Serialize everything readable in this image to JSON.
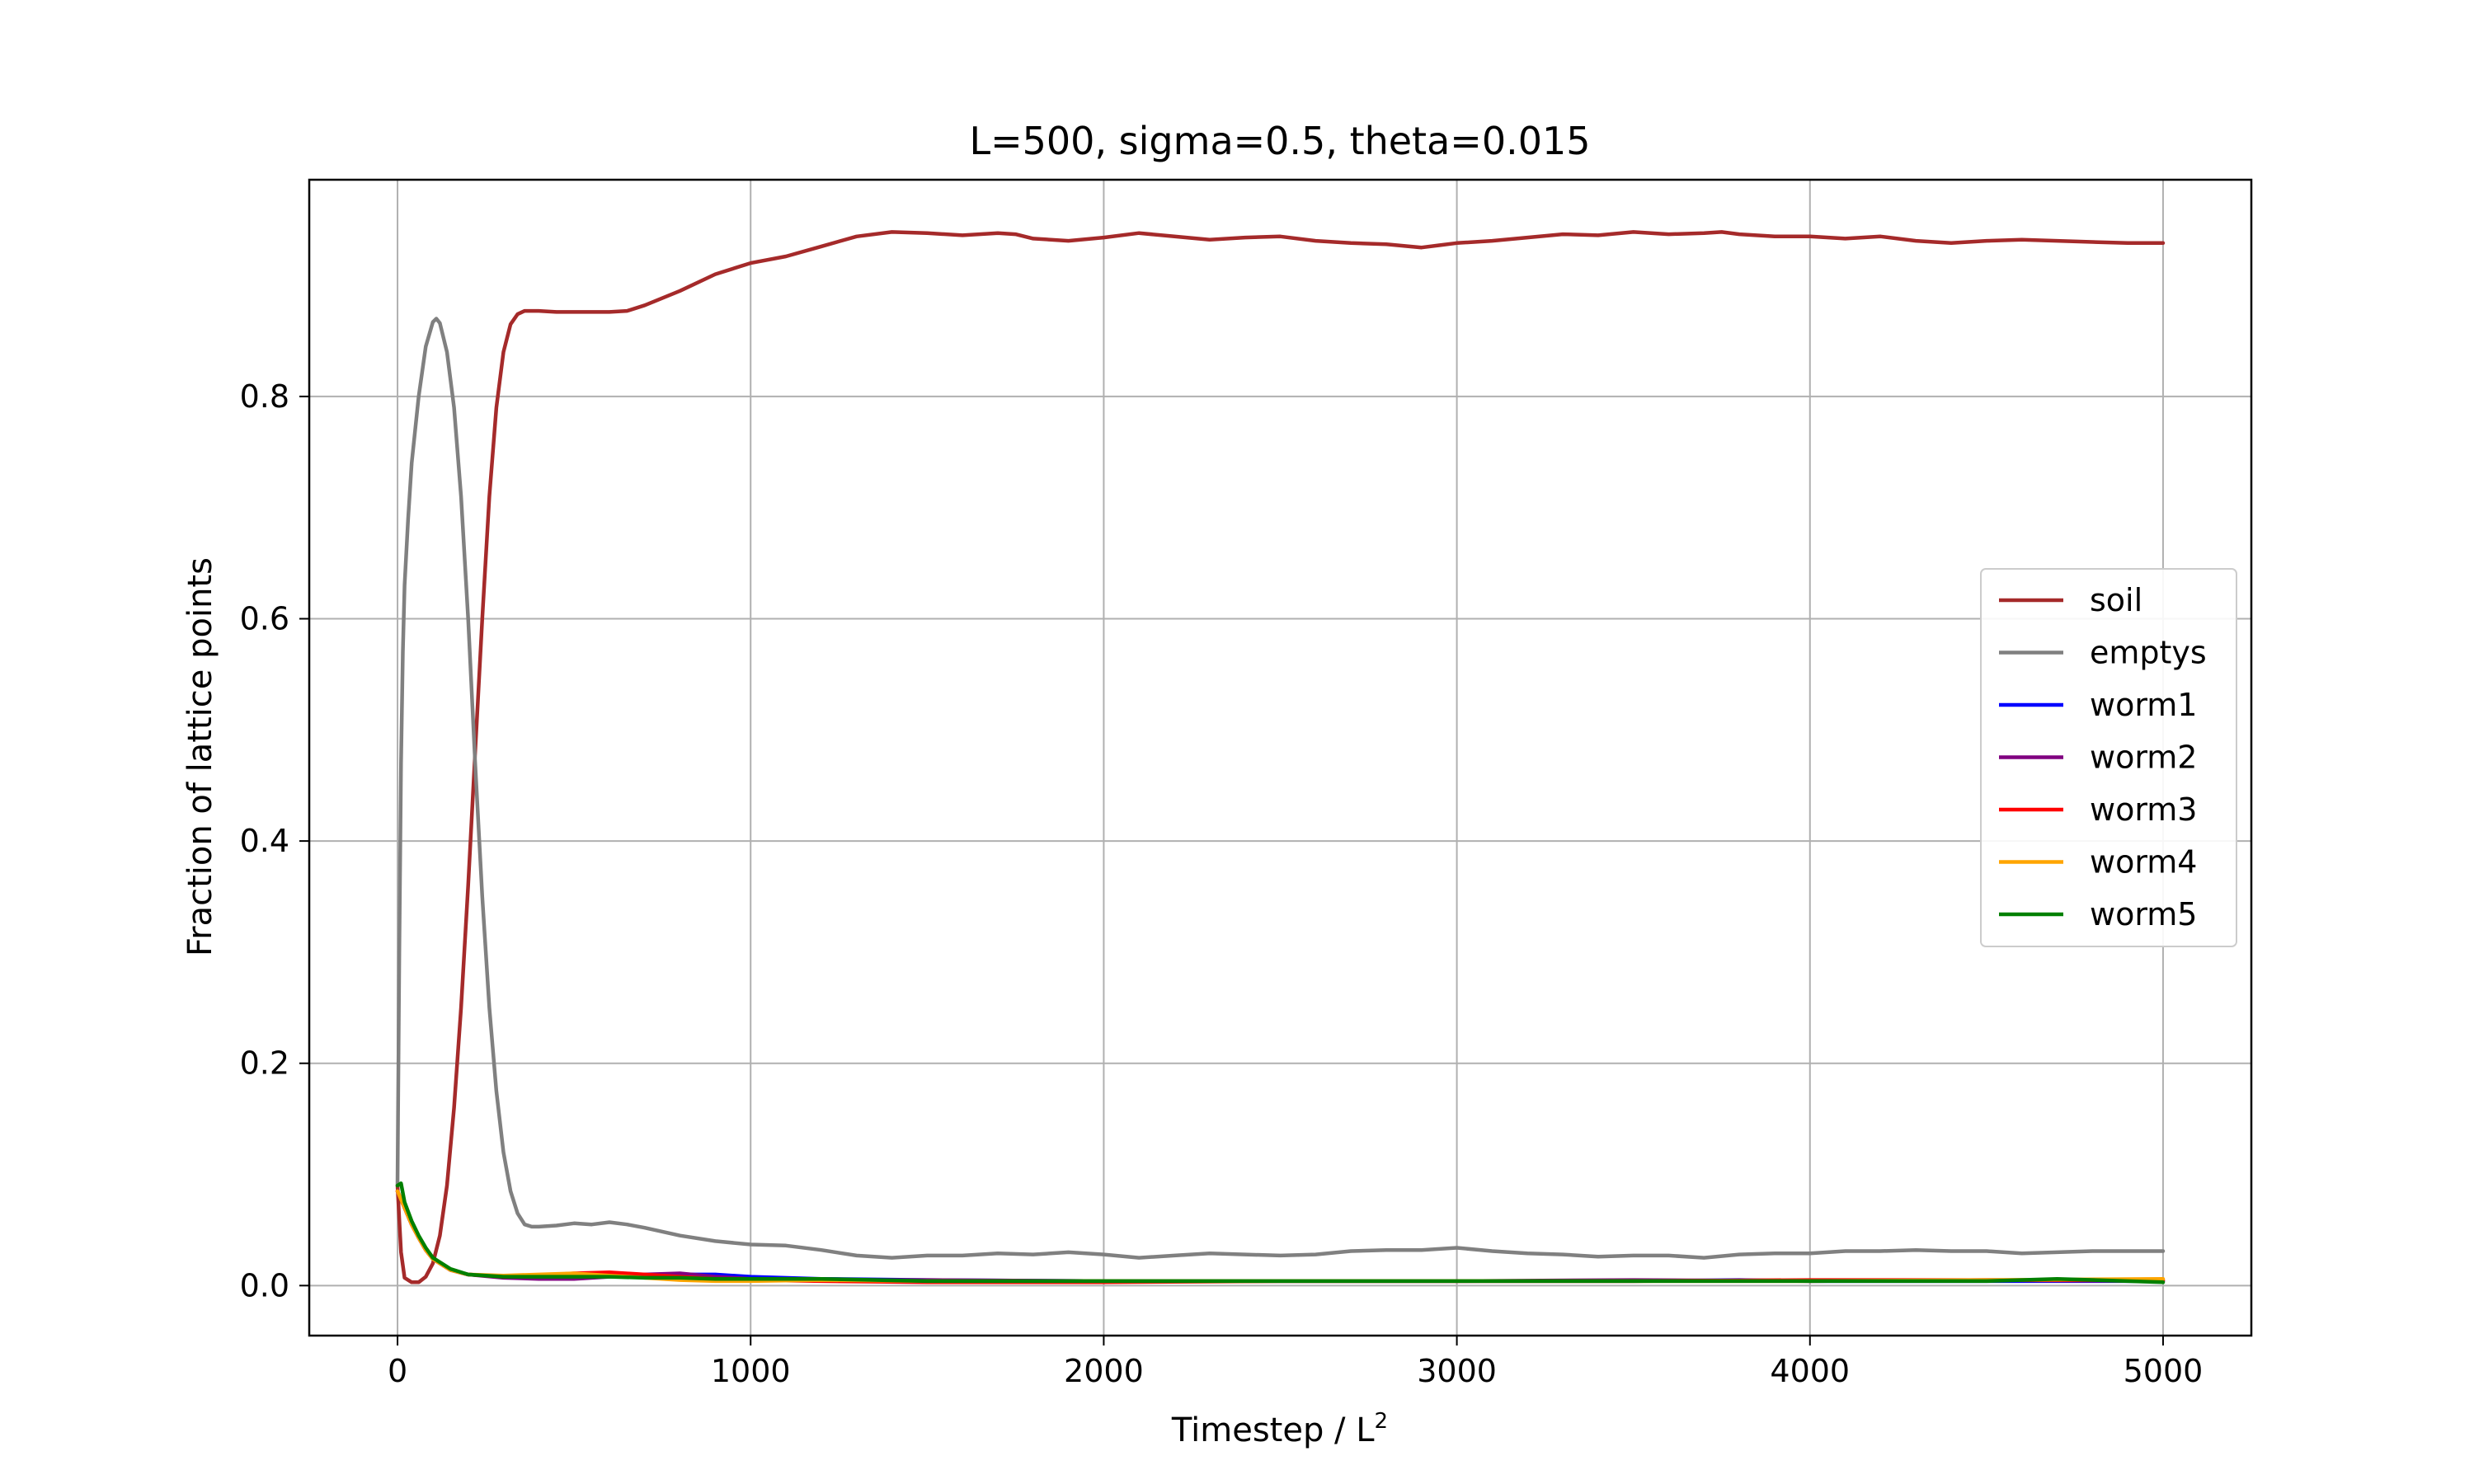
{
  "chart_data": {
    "type": "line",
    "title": "L=500, sigma=0.5, theta=0.015",
    "xlabel": "Timestep / L",
    "xlabel_sup": "2",
    "ylabel": "Fraction of lattice points",
    "xlim": [
      -250,
      5250
    ],
    "ylim": [
      -0.045,
      0.995
    ],
    "xticks": [
      0,
      1000,
      2000,
      3000,
      4000,
      5000
    ],
    "xtick_labels": [
      "0",
      "1000",
      "2000",
      "3000",
      "4000",
      "5000"
    ],
    "yticks": [
      0.0,
      0.2,
      0.4,
      0.6,
      0.8
    ],
    "ytick_labels": [
      "0.0",
      "0.2",
      "0.4",
      "0.6",
      "0.8"
    ],
    "grid": true,
    "legend_position": "center-right",
    "series": [
      {
        "name": "soil",
        "color": "#a52a2a",
        "x": [
          0,
          10,
          20,
          40,
          60,
          80,
          100,
          120,
          140,
          160,
          180,
          200,
          220,
          240,
          260,
          280,
          300,
          320,
          340,
          360,
          400,
          450,
          500,
          550,
          600,
          650,
          700,
          800,
          900,
          1000,
          1100,
          1200,
          1300,
          1400,
          1500,
          1600,
          1700,
          1750,
          1800,
          1900,
          2000,
          2100,
          2200,
          2300,
          2400,
          2500,
          2600,
          2700,
          2800,
          2900,
          2950,
          3000,
          3100,
          3200,
          3300,
          3400,
          3500,
          3600,
          3700,
          3750,
          3800,
          3900,
          4000,
          4100,
          4200,
          4300,
          4400,
          4500,
          4600,
          4700,
          4800,
          4900,
          5000
        ],
        "y": [
          0.09,
          0.03,
          0.007,
          0.003,
          0.003,
          0.008,
          0.02,
          0.045,
          0.09,
          0.16,
          0.25,
          0.36,
          0.48,
          0.6,
          0.71,
          0.79,
          0.84,
          0.865,
          0.874,
          0.877,
          0.877,
          0.876,
          0.876,
          0.876,
          0.876,
          0.877,
          0.882,
          0.895,
          0.91,
          0.92,
          0.926,
          0.935,
          0.944,
          0.948,
          0.947,
          0.945,
          0.947,
          0.946,
          0.942,
          0.94,
          0.943,
          0.947,
          0.944,
          0.941,
          0.943,
          0.944,
          0.94,
          0.938,
          0.937,
          0.934,
          0.936,
          0.938,
          0.94,
          0.943,
          0.946,
          0.945,
          0.948,
          0.946,
          0.947,
          0.948,
          0.946,
          0.944,
          0.944,
          0.942,
          0.944,
          0.94,
          0.938,
          0.94,
          0.941,
          0.94,
          0.939,
          0.938,
          0.938
        ]
      },
      {
        "name": "emptys",
        "color": "#808080",
        "x": [
          0,
          5,
          10,
          15,
          20,
          30,
          40,
          60,
          80,
          100,
          110,
          120,
          140,
          160,
          180,
          200,
          220,
          240,
          260,
          280,
          300,
          320,
          340,
          360,
          380,
          400,
          450,
          500,
          550,
          600,
          650,
          700,
          800,
          900,
          1000,
          1100,
          1200,
          1300,
          1400,
          1500,
          1600,
          1700,
          1800,
          1900,
          2000,
          2100,
          2200,
          2300,
          2400,
          2500,
          2600,
          2700,
          2800,
          2900,
          3000,
          3100,
          3200,
          3300,
          3400,
          3500,
          3600,
          3700,
          3800,
          3900,
          4000,
          4100,
          4200,
          4300,
          4400,
          4500,
          4600,
          4700,
          4800,
          4900,
          5000
        ],
        "y": [
          0.09,
          0.3,
          0.47,
          0.57,
          0.63,
          0.69,
          0.74,
          0.8,
          0.845,
          0.867,
          0.87,
          0.866,
          0.84,
          0.79,
          0.71,
          0.6,
          0.47,
          0.35,
          0.25,
          0.175,
          0.12,
          0.085,
          0.065,
          0.055,
          0.053,
          0.053,
          0.054,
          0.056,
          0.055,
          0.057,
          0.055,
          0.052,
          0.045,
          0.04,
          0.037,
          0.036,
          0.032,
          0.027,
          0.025,
          0.027,
          0.027,
          0.029,
          0.028,
          0.03,
          0.028,
          0.025,
          0.027,
          0.029,
          0.028,
          0.027,
          0.028,
          0.031,
          0.032,
          0.032,
          0.034,
          0.031,
          0.029,
          0.028,
          0.026,
          0.027,
          0.027,
          0.025,
          0.028,
          0.029,
          0.029,
          0.031,
          0.031,
          0.032,
          0.031,
          0.031,
          0.029,
          0.03,
          0.031,
          0.031,
          0.031
        ]
      },
      {
        "name": "worm1",
        "color": "#0000ff",
        "x": [
          0,
          20,
          40,
          60,
          80,
          100,
          150,
          200,
          300,
          400,
          500,
          600,
          700,
          800,
          900,
          1000,
          1200,
          1500,
          2000,
          2500,
          3000,
          3500,
          3800,
          4000,
          4500,
          5000
        ],
        "y": [
          0.085,
          0.07,
          0.055,
          0.043,
          0.032,
          0.024,
          0.014,
          0.01,
          0.008,
          0.007,
          0.008,
          0.009,
          0.009,
          0.01,
          0.01,
          0.008,
          0.006,
          0.005,
          0.004,
          0.004,
          0.004,
          0.004,
          0.005,
          0.004,
          0.004,
          0.004
        ]
      },
      {
        "name": "worm2",
        "color": "#800080",
        "x": [
          0,
          20,
          40,
          60,
          80,
          100,
          150,
          200,
          300,
          400,
          500,
          600,
          700,
          800,
          900,
          1000,
          1200,
          1500,
          2000,
          2500,
          3000,
          3500,
          4000,
          4500,
          5000
        ],
        "y": [
          0.085,
          0.07,
          0.055,
          0.043,
          0.032,
          0.024,
          0.014,
          0.01,
          0.007,
          0.006,
          0.006,
          0.008,
          0.01,
          0.011,
          0.008,
          0.006,
          0.005,
          0.005,
          0.004,
          0.004,
          0.004,
          0.005,
          0.004,
          0.005,
          0.004
        ]
      },
      {
        "name": "worm3",
        "color": "#ff0000",
        "x": [
          0,
          20,
          40,
          60,
          80,
          100,
          150,
          200,
          300,
          400,
          500,
          600,
          700,
          800,
          900,
          1000,
          1200,
          1500,
          2000,
          2500,
          3000,
          3500,
          4000,
          4500,
          5000
        ],
        "y": [
          0.085,
          0.07,
          0.055,
          0.043,
          0.032,
          0.024,
          0.014,
          0.01,
          0.008,
          0.009,
          0.011,
          0.012,
          0.01,
          0.008,
          0.006,
          0.005,
          0.004,
          0.003,
          0.003,
          0.004,
          0.004,
          0.004,
          0.005,
          0.005,
          0.005
        ]
      },
      {
        "name": "worm4",
        "color": "#ffa500",
        "x": [
          0,
          20,
          40,
          60,
          80,
          100,
          150,
          200,
          300,
          400,
          500,
          600,
          700,
          800,
          900,
          1000,
          1200,
          1500,
          2000,
          2500,
          3000,
          3500,
          4000,
          4500,
          5000
        ],
        "y": [
          0.085,
          0.07,
          0.055,
          0.043,
          0.032,
          0.024,
          0.014,
          0.01,
          0.009,
          0.01,
          0.011,
          0.009,
          0.007,
          0.005,
          0.004,
          0.004,
          0.005,
          0.004,
          0.004,
          0.004,
          0.004,
          0.004,
          0.004,
          0.005,
          0.006
        ]
      },
      {
        "name": "worm5",
        "color": "#008000",
        "x": [
          0,
          10,
          20,
          40,
          60,
          80,
          100,
          150,
          200,
          300,
          400,
          500,
          600,
          700,
          800,
          900,
          1000,
          1200,
          1500,
          2000,
          2500,
          3000,
          3500,
          4000,
          4500,
          4700,
          5000
        ],
        "y": [
          0.09,
          0.092,
          0.075,
          0.058,
          0.045,
          0.034,
          0.025,
          0.015,
          0.01,
          0.008,
          0.008,
          0.008,
          0.008,
          0.007,
          0.007,
          0.006,
          0.006,
          0.006,
          0.004,
          0.004,
          0.004,
          0.004,
          0.004,
          0.004,
          0.004,
          0.006,
          0.003
        ]
      }
    ]
  }
}
